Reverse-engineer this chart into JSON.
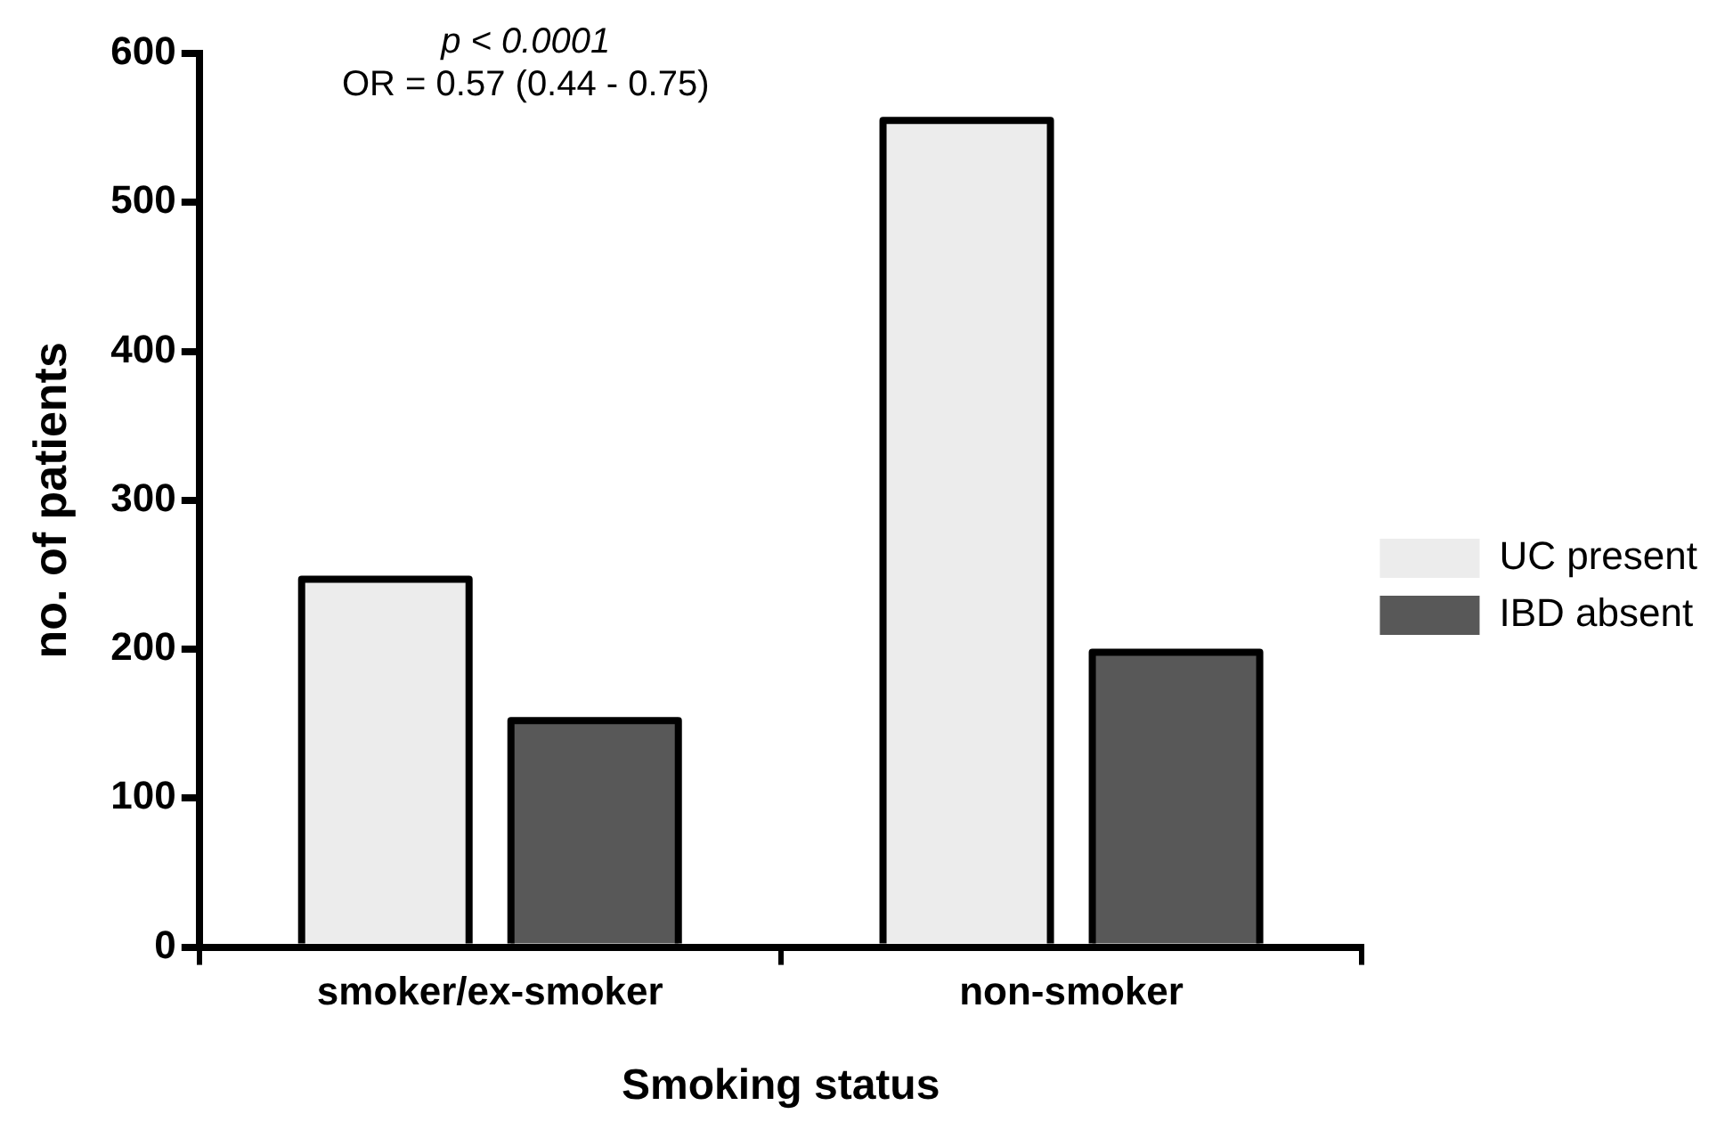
{
  "chart_data": {
    "type": "bar",
    "xlabel": "Smoking status",
    "ylabel": "no. of patients",
    "categories": [
      "smoker/ex-smoker",
      "non-smoker"
    ],
    "series": [
      {
        "name": "UC present",
        "color": "#ececec",
        "values": [
          247,
          555
        ]
      },
      {
        "name": "IBD absent",
        "color": "#585858",
        "values": [
          152,
          198
        ]
      }
    ],
    "ylim": [
      0,
      600
    ],
    "yticks": [
      0,
      100,
      200,
      300,
      400,
      500,
      600
    ],
    "grid": false,
    "legend": "right",
    "annotations": [
      "p < 0.0001",
      "OR = 0.57 (0.44 - 0.75)"
    ]
  }
}
